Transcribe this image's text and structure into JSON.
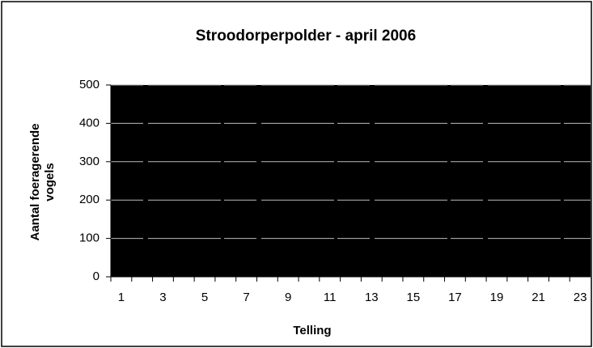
{
  "chart_data": {
    "type": "bar",
    "title": "Stroodorperpolder - april 2006",
    "xlabel": "Telling",
    "ylabel": [
      "Aantal foeragerende",
      "vogels"
    ],
    "categories": [
      "1",
      null,
      "3",
      null,
      "5",
      null,
      "7",
      null,
      "9",
      null,
      "11",
      null,
      "13",
      null,
      "15",
      null,
      "17",
      null,
      "19",
      null,
      "21",
      null,
      "23"
    ],
    "ylim": [
      0,
      500
    ],
    "yticks": [
      0,
      100,
      200,
      300,
      400,
      500
    ],
    "grid": true,
    "plot_background": "#000000",
    "grid_color": "#bbbbbb"
  }
}
